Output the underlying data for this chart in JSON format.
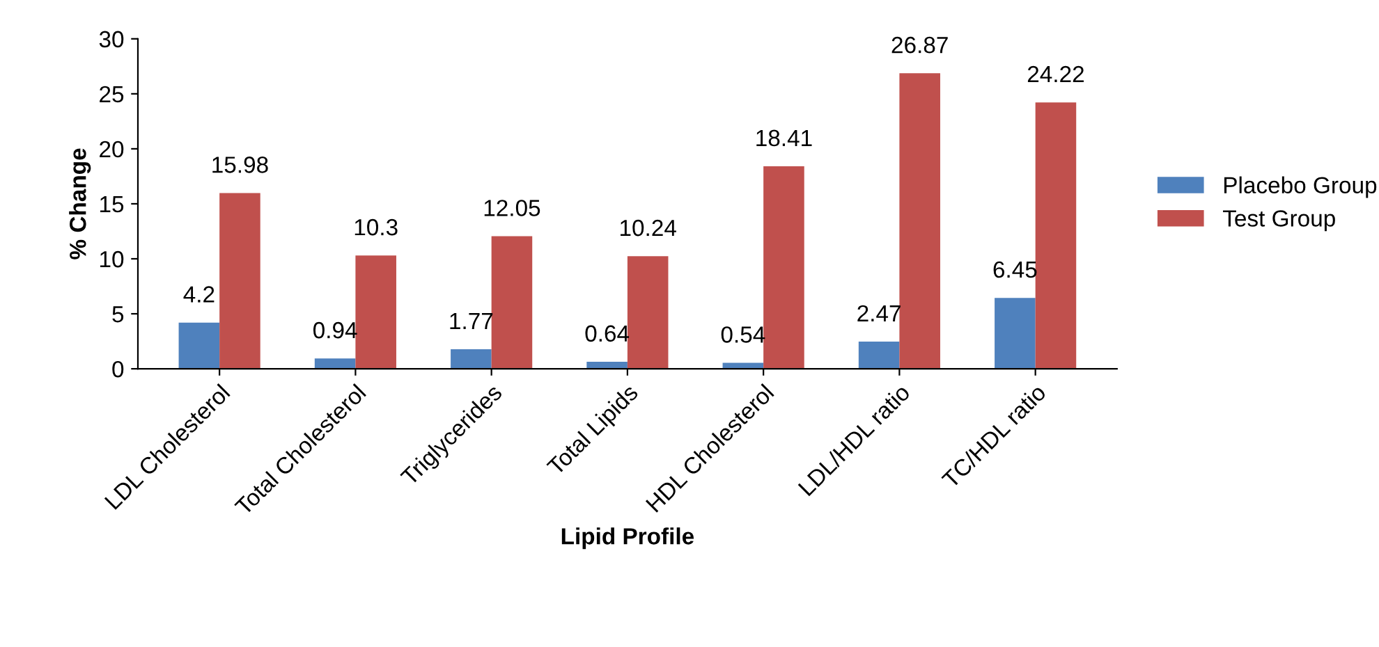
{
  "chart_data": {
    "type": "bar",
    "xlabel": "Lipid Profile",
    "ylabel": "% Change",
    "categories": [
      "LDL Cholesterol",
      "Total Cholesterol",
      "Triglycerides",
      "Total Lipids",
      "HDL Cholesterol",
      "LDL/HDL ratio",
      "TC/HDL ratio"
    ],
    "series": [
      {
        "name": "Placebo Group",
        "color": "#4f81bd",
        "values": [
          4.2,
          0.94,
          1.77,
          0.64,
          0.54,
          2.47,
          6.45
        ]
      },
      {
        "name": "Test Group",
        "color": "#c0504d",
        "values": [
          15.98,
          10.3,
          12.05,
          10.24,
          18.41,
          26.87,
          24.22
        ]
      }
    ],
    "ylim": [
      0,
      30
    ],
    "yticks": [
      0,
      5,
      10,
      15,
      20,
      25,
      30
    ],
    "data_labels": true,
    "grid": false,
    "legend": "right"
  }
}
